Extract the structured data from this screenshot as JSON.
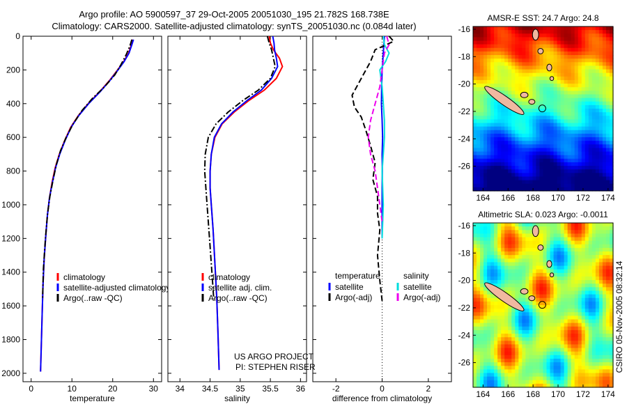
{
  "header": {
    "line1": "Argo profile: AO 5900597_37 29-Oct-2005 20051030_195 21.782S 168.738E",
    "line2": "Climatology: CARS2000. Satellite-adjusted climatology: synTS_20051030.nc (0.084d later)"
  },
  "side_label": "CSIRO 05-Nov-2005 08:32:14",
  "project": {
    "line1": "US ARGO PROJECT",
    "line2": "PI: STEPHEN RISER"
  },
  "colors": {
    "climatology": "#ff0000",
    "satellite": "#0000ff",
    "argo": "#000000",
    "sal_satellite": "#00dddd",
    "sal_argo": "#ee00ee",
    "land": "#f0b8a0"
  },
  "chart_data": [
    {
      "type": "line",
      "id": "temperature",
      "xlabel": "temperature",
      "xlim": [
        -2,
        32
      ],
      "ylim": [
        0,
        2050
      ],
      "xticks": [
        0,
        10,
        20,
        30
      ],
      "yticks": [
        0,
        200,
        400,
        600,
        800,
        1000,
        1200,
        1400,
        1600,
        1800,
        2000
      ],
      "legend": [
        "climatology",
        "satellite-adjusted climatology",
        "Argo(..raw -QC)"
      ],
      "series": [
        {
          "name": "climatology",
          "style": "solid",
          "color": "#ff0000",
          "x": [
            24.9,
            24.6,
            23.9,
            22.7,
            21.2,
            19.3,
            16.8,
            14.0,
            11.6,
            9.7,
            8.2,
            6.9,
            5.9,
            5.1,
            4.5,
            4.0,
            3.6,
            3.2,
            2.9,
            2.7,
            2.5,
            2.3
          ],
          "y": [
            20,
            50,
            100,
            150,
            200,
            260,
            330,
            400,
            470,
            540,
            620,
            700,
            780,
            870,
            960,
            1060,
            1180,
            1320,
            1480,
            1650,
            1830,
            1990
          ]
        },
        {
          "name": "satellite-adjusted climatology",
          "style": "solid",
          "color": "#0000ff",
          "x": [
            25.1,
            24.7,
            24.0,
            22.8,
            21.3,
            19.4,
            16.9,
            14.1,
            11.7,
            9.8,
            8.3,
            7.0,
            6.0,
            5.2,
            4.5,
            4.0,
            3.6,
            3.2,
            2.9,
            2.7,
            2.5,
            2.3
          ],
          "y": [
            20,
            50,
            100,
            150,
            200,
            260,
            330,
            400,
            470,
            540,
            620,
            700,
            780,
            870,
            960,
            1060,
            1180,
            1320,
            1480,
            1650,
            1830,
            1990
          ]
        },
        {
          "name": "Argo(..raw -QC)",
          "style": "dashdot",
          "color": "#000000",
          "x": [
            24.7,
            24.2,
            23.3,
            22.0,
            20.5,
            18.0,
            15.0,
            12.5,
            10.3,
            8.6,
            7.2,
            6.2,
            5.4,
            4.6,
            4.0,
            3.5,
            3.0,
            2.8
          ],
          "y": [
            20,
            60,
            110,
            170,
            230,
            300,
            370,
            440,
            520,
            600,
            680,
            760,
            850,
            950,
            1060,
            1200,
            1380,
            1560
          ]
        }
      ]
    },
    {
      "type": "line",
      "id": "salinity",
      "xlabel": "salinity",
      "xlim": [
        33.8,
        36.1
      ],
      "ylim": [
        0,
        2050
      ],
      "xticks": [
        34,
        34.5,
        35,
        35.5,
        36
      ],
      "yticks": [
        0,
        200,
        400,
        600,
        800,
        1000,
        1200,
        1400,
        1600,
        1800,
        2000
      ],
      "legend": [
        "climatology",
        "satellite adj. clim.",
        "Argo(..raw -QC)"
      ],
      "series": [
        {
          "name": "climatology",
          "style": "solid",
          "color": "#ff0000",
          "x": [
            35.48,
            35.5,
            35.55,
            35.65,
            35.7,
            35.6,
            35.4,
            35.15,
            34.9,
            34.7,
            34.58,
            34.52,
            34.5,
            34.5,
            34.52,
            34.55,
            34.58,
            34.61,
            34.63,
            34.65
          ],
          "y": [
            0,
            40,
            80,
            130,
            180,
            250,
            320,
            380,
            450,
            520,
            600,
            700,
            800,
            900,
            1000,
            1150,
            1350,
            1550,
            1750,
            1980
          ]
        },
        {
          "name": "satellite adj. clim.",
          "style": "solid",
          "color": "#0000ff",
          "x": [
            35.54,
            35.56,
            35.57,
            35.6,
            35.62,
            35.52,
            35.35,
            35.12,
            34.88,
            34.69,
            34.57,
            34.52,
            34.5,
            34.5,
            34.52,
            34.55,
            34.58,
            34.61,
            34.63,
            34.65
          ],
          "y": [
            0,
            40,
            80,
            130,
            180,
            250,
            320,
            380,
            450,
            520,
            600,
            700,
            800,
            900,
            1000,
            1150,
            1350,
            1550,
            1750,
            1980
          ]
        },
        {
          "name": "Argo(..raw -QC)",
          "style": "dashdot",
          "color": "#000000",
          "x": [
            35.45,
            35.48,
            35.52,
            35.55,
            35.58,
            35.5,
            35.3,
            35.05,
            34.8,
            34.6,
            34.47,
            34.42,
            34.41,
            34.43,
            34.46,
            34.5,
            34.54,
            34.56
          ],
          "y": [
            0,
            40,
            80,
            130,
            180,
            250,
            320,
            380,
            450,
            520,
            600,
            700,
            800,
            900,
            1050,
            1250,
            1450,
            1560
          ]
        }
      ]
    },
    {
      "type": "line",
      "id": "difference",
      "xlabel": "difference from climatology",
      "xlim": [
        -3.0,
        3.0
      ],
      "ylim": [
        0,
        2050
      ],
      "xticks": [
        -2,
        0,
        2
      ],
      "yticks": [
        0,
        200,
        400,
        600,
        800,
        1000,
        1200,
        1400,
        1600,
        1800,
        2000
      ],
      "legend_headers": [
        "temperature",
        "salinity"
      ],
      "legend": [
        "satellite",
        "Argo(-adj)",
        "satellite",
        "Argo(-adj)"
      ],
      "series": [
        {
          "name": "satellite",
          "group": "temperature",
          "style": "solid",
          "color": "#0000ff",
          "x": [
            0.1,
            0.05,
            0.0,
            -0.02,
            -0.03,
            0.0,
            0.02,
            0.0,
            0.01,
            0.0,
            0.0,
            0.0
          ],
          "y": [
            0,
            100,
            200,
            300,
            400,
            500,
            600,
            700,
            800,
            900,
            1000,
            1200
          ]
        },
        {
          "name": "Argo(-adj)",
          "group": "temperature",
          "style": "dashed",
          "color": "#000000",
          "x": [
            0.3,
            0.5,
            -0.3,
            -0.5,
            -0.9,
            -1.3,
            -1.2,
            -0.9,
            -0.7,
            -0.5,
            -0.3,
            -0.4,
            -0.2,
            -0.2,
            -0.1,
            -0.2,
            -0.1,
            0.0
          ],
          "y": [
            0,
            30,
            80,
            150,
            250,
            350,
            420,
            480,
            560,
            650,
            750,
            850,
            950,
            1050,
            1150,
            1300,
            1450,
            1570
          ]
        },
        {
          "name": "satellite",
          "group": "salinity",
          "style": "solid",
          "color": "#00dddd",
          "x": [
            0.05,
            0.1,
            0.3,
            0.15,
            -0.1,
            0.0,
            0.05,
            0.1,
            0.1,
            0.05,
            0.0,
            0.05,
            0.0
          ],
          "y": [
            0,
            50,
            100,
            150,
            200,
            300,
            400,
            500,
            600,
            700,
            800,
            1000,
            1200
          ]
        },
        {
          "name": "Argo(-adj)",
          "group": "salinity",
          "style": "dashed",
          "color": "#ee00ee",
          "x": [
            0.2,
            0.3,
            0.1,
            0.0,
            -0.1,
            -0.3,
            -0.5,
            -0.6,
            -0.5,
            -0.3,
            -0.2,
            -0.1,
            0.0
          ],
          "y": [
            0,
            50,
            100,
            200,
            300,
            400,
            500,
            600,
            700,
            800,
            900,
            1000,
            1100
          ]
        }
      ]
    },
    {
      "type": "heatmap",
      "id": "sst_map",
      "title": "AMSR-E SST: 24.7 Argo: 24.8",
      "xlim": [
        163.2,
        174.4
      ],
      "ylim": [
        -27.8,
        -15.8
      ],
      "xticks": [
        164,
        166,
        168,
        170,
        172,
        174
      ],
      "yticks": [
        -16,
        -18,
        -20,
        -22,
        -24,
        -26
      ],
      "colormap": "jet",
      "argo_position": {
        "lon": 168.738,
        "lat": -21.782
      }
    },
    {
      "type": "heatmap",
      "id": "sla_map",
      "title": "Altimetric SLA: 0.023 Argo: -0.0011",
      "xlim": [
        163.2,
        174.4
      ],
      "ylim": [
        -27.8,
        -15.8
      ],
      "xticks": [
        164,
        166,
        168,
        170,
        172,
        174
      ],
      "yticks": [
        -16,
        -18,
        -20,
        -22,
        -24,
        -26
      ],
      "colormap": "jet",
      "argo_position": {
        "lon": 168.738,
        "lat": -21.782
      }
    }
  ]
}
